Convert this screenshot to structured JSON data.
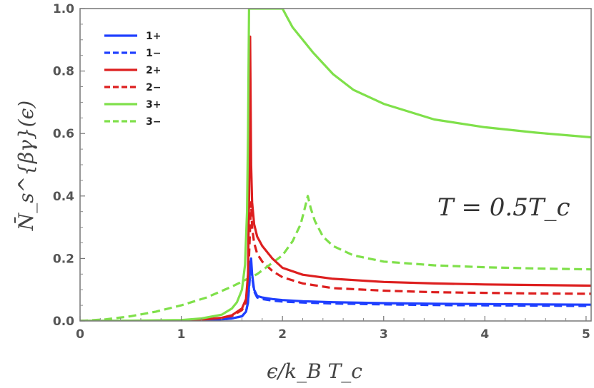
{
  "chart_data": {
    "type": "line",
    "xlabel": "ϵ/k_B T_c",
    "ylabel": "N̄_s^{βγ}(ϵ)",
    "xlim": [
      0,
      5.05
    ],
    "ylim": [
      0,
      1.0
    ],
    "x_ticks": [
      "0",
      "1",
      "2",
      "3",
      "4",
      "5"
    ],
    "y_ticks": [
      "0.0",
      "0.2",
      "0.4",
      "0.6",
      "0.8",
      "1.0"
    ],
    "grid": false,
    "legend_position": "top-left",
    "annotation": "T = 0.5T_c",
    "colors": {
      "blue": "#1f3fff",
      "red": "#dd1f1f",
      "green": "#7fe04a"
    },
    "series": [
      {
        "name": "1+",
        "color": "#1f3fff",
        "style": "solid",
        "x": [
          0,
          0.5,
          1.0,
          1.2,
          1.4,
          1.5,
          1.6,
          1.64,
          1.66,
          1.68,
          1.69,
          1.7,
          1.72,
          1.75,
          1.8,
          1.9,
          2.0,
          2.2,
          2.5,
          3.0,
          3.5,
          4.0,
          4.5,
          5.05
        ],
        "y": [
          0,
          0,
          0.001,
          0.002,
          0.005,
          0.008,
          0.015,
          0.03,
          0.06,
          0.17,
          0.2,
          0.15,
          0.1,
          0.08,
          0.075,
          0.07,
          0.067,
          0.063,
          0.06,
          0.057,
          0.055,
          0.054,
          0.053,
          0.052
        ]
      },
      {
        "name": "1−",
        "color": "#1f3fff",
        "style": "dashed",
        "x": [
          0,
          0.5,
          1.0,
          1.2,
          1.4,
          1.5,
          1.6,
          1.64,
          1.66,
          1.68,
          1.69,
          1.7,
          1.72,
          1.75,
          1.8,
          1.9,
          2.0,
          2.2,
          2.5,
          3.0,
          3.5,
          4.0,
          4.5,
          5.05
        ],
        "y": [
          0,
          0,
          0.001,
          0.002,
          0.005,
          0.008,
          0.015,
          0.03,
          0.06,
          0.15,
          0.18,
          0.14,
          0.095,
          0.075,
          0.07,
          0.065,
          0.062,
          0.059,
          0.056,
          0.053,
          0.051,
          0.05,
          0.049,
          0.048
        ]
      },
      {
        "name": "2+",
        "color": "#dd1f1f",
        "style": "solid",
        "x": [
          0,
          0.5,
          1.0,
          1.2,
          1.4,
          1.5,
          1.6,
          1.64,
          1.66,
          1.67,
          1.68,
          1.69,
          1.7,
          1.72,
          1.75,
          1.8,
          1.9,
          2.0,
          2.2,
          2.5,
          3.0,
          3.5,
          4.0,
          4.5,
          5.05
        ],
        "y": [
          0,
          0,
          0.002,
          0.004,
          0.01,
          0.018,
          0.04,
          0.07,
          0.15,
          0.4,
          0.91,
          0.5,
          0.38,
          0.31,
          0.27,
          0.24,
          0.2,
          0.17,
          0.148,
          0.135,
          0.125,
          0.12,
          0.117,
          0.115,
          0.113
        ]
      },
      {
        "name": "2−",
        "color": "#dd1f1f",
        "style": "dashed",
        "x": [
          0,
          0.5,
          1.0,
          1.2,
          1.4,
          1.5,
          1.6,
          1.64,
          1.66,
          1.68,
          1.69,
          1.7,
          1.72,
          1.75,
          1.8,
          1.9,
          2.0,
          2.2,
          2.5,
          3.0,
          3.5,
          4.0,
          4.5,
          5.05
        ],
        "y": [
          0,
          0,
          0.002,
          0.004,
          0.009,
          0.016,
          0.035,
          0.06,
          0.12,
          0.3,
          0.38,
          0.3,
          0.25,
          0.215,
          0.19,
          0.16,
          0.14,
          0.12,
          0.105,
          0.097,
          0.092,
          0.09,
          0.088,
          0.087
        ]
      },
      {
        "name": "3+",
        "color": "#7fe04a",
        "style": "solid",
        "x": [
          0,
          0.5,
          1.0,
          1.2,
          1.4,
          1.5,
          1.55,
          1.6,
          1.63,
          1.65,
          1.66,
          1.67,
          2.0,
          2.05,
          2.1,
          2.2,
          2.3,
          2.5,
          2.7,
          3.0,
          3.5,
          4.0,
          4.5,
          5.05
        ],
        "y": [
          0,
          0.001,
          0.003,
          0.008,
          0.02,
          0.04,
          0.06,
          0.1,
          0.18,
          0.35,
          0.6,
          1.0,
          1.0,
          0.97,
          0.94,
          0.9,
          0.86,
          0.79,
          0.74,
          0.695,
          0.645,
          0.62,
          0.603,
          0.588
        ]
      },
      {
        "name": "3−",
        "color": "#7fe04a",
        "style": "dashed",
        "x": [
          0,
          0.25,
          0.5,
          0.75,
          1.0,
          1.25,
          1.5,
          1.75,
          2.0,
          2.1,
          2.18,
          2.22,
          2.25,
          2.28,
          2.32,
          2.4,
          2.5,
          2.7,
          3.0,
          3.5,
          4.0,
          4.5,
          5.05
        ],
        "y": [
          0,
          0.005,
          0.015,
          0.03,
          0.05,
          0.075,
          0.11,
          0.15,
          0.21,
          0.255,
          0.31,
          0.36,
          0.4,
          0.36,
          0.32,
          0.27,
          0.24,
          0.21,
          0.19,
          0.178,
          0.172,
          0.168,
          0.165
        ]
      }
    ]
  }
}
